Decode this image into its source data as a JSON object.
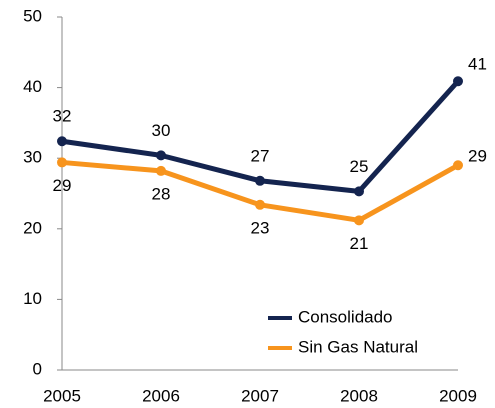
{
  "chart_data": {
    "type": "line",
    "categories": [
      "2005",
      "2006",
      "2007",
      "2008",
      "2009"
    ],
    "series": [
      {
        "name": "Consolidado",
        "color": "#14244f",
        "values": [
          32.4,
          30.4,
          26.8,
          25.3,
          40.9
        ],
        "value_labels": [
          "32",
          "30",
          "27",
          "25",
          "41"
        ]
      },
      {
        "name": "Sin Gas Natural",
        "color": "#f7941d",
        "values": [
          29.4,
          28.2,
          23.4,
          21.2,
          29.0
        ],
        "value_labels": [
          "29",
          "28",
          "23",
          "21",
          "29"
        ]
      }
    ],
    "ylim": [
      0,
      50
    ],
    "yticks": [
      0,
      10,
      20,
      30,
      40,
      50
    ],
    "grid": false,
    "legend": "lower right"
  }
}
